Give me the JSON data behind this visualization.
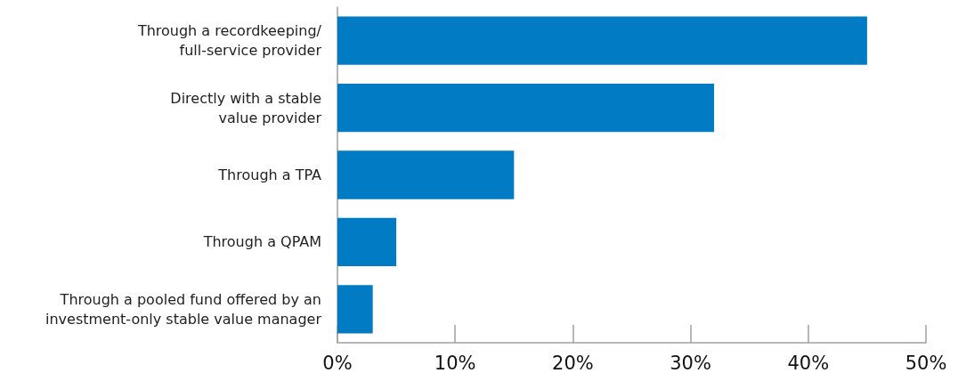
{
  "chart_data": {
    "type": "bar",
    "orientation": "horizontal",
    "categories": [
      "Through a recordkeeping/\nfull-service provider",
      "Directly with a stable\nvalue provider",
      "Through a TPA",
      "Through a QPAM",
      "Through a pooled fund offered by an\ninvestment-only stable value manager"
    ],
    "values": [
      45,
      32,
      15,
      5,
      3
    ],
    "color": "#017bc3",
    "xlim": [
      0,
      50
    ],
    "xticks": [
      {
        "value": 0,
        "label": "0%"
      },
      {
        "value": 10,
        "label": "10%"
      },
      {
        "value": 20,
        "label": "20%"
      },
      {
        "value": 30,
        "label": "30%"
      },
      {
        "value": 40,
        "label": "40%"
      },
      {
        "value": 50,
        "label": "50%"
      }
    ],
    "grid": false
  }
}
